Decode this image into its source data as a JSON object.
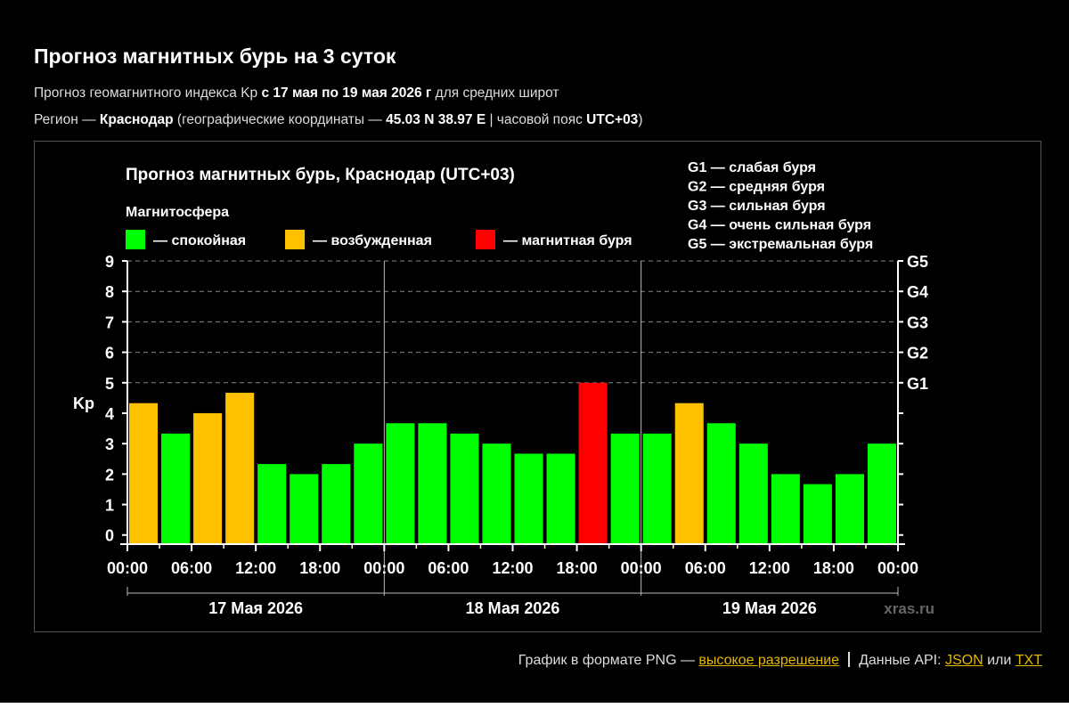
{
  "page": {
    "title": "Прогноз магнитных бурь на 3 суток",
    "line1": {
      "prefix": "Прогноз геомагнитного индекса Kp ",
      "dates": "с 17 мая по 19 мая 2026 г",
      "suffix": " для средних широт"
    },
    "line2": {
      "prefix": "Регион — ",
      "city": "Краснодар",
      "mid": " (географические координаты — ",
      "coords": "45.03 N 38.97 E",
      "mid2": " | часовой пояс ",
      "tz": "UTC+03",
      "end": ")"
    }
  },
  "chart_data": {
    "type": "bar",
    "title": "Прогноз магнитных бурь, Краснодар (UTC+03)",
    "ylabel": "Kp",
    "ylim": [
      0,
      9
    ],
    "y_ticks": [
      "0",
      "1",
      "2",
      "3",
      "4",
      "5",
      "6",
      "7",
      "8",
      "9"
    ],
    "g_levels": [
      {
        "label": "G1",
        "kp": 5
      },
      {
        "label": "G2",
        "kp": 6
      },
      {
        "label": "G3",
        "kp": 7
      },
      {
        "label": "G4",
        "kp": 8
      },
      {
        "label": "G5",
        "kp": 9
      }
    ],
    "legend_title": "Магнитосфера",
    "legend": [
      {
        "label": "— спокойная",
        "color": "#00ff00"
      },
      {
        "label": "— возбужденная",
        "color": "#ffc000"
      },
      {
        "label": "— магнитная буря",
        "color": "#ff0000"
      }
    ],
    "g_legend": [
      "G1 — слабая буря",
      "G2 — средняя буря",
      "G3 — сильная буря",
      "G4 — очень сильная буря",
      "G5 — экстремальная буря"
    ],
    "x_tick_labels": [
      "00:00",
      "06:00",
      "12:00",
      "18:00",
      "00:00",
      "06:00",
      "12:00",
      "18:00",
      "00:00",
      "06:00",
      "12:00",
      "18:00",
      "00:00"
    ],
    "days": [
      "17 Мая 2026",
      "18 Мая 2026",
      "19 Мая 2026"
    ],
    "values": [
      4.33,
      3.33,
      4.0,
      4.67,
      2.33,
      2.0,
      2.33,
      3.0,
      3.67,
      3.67,
      3.33,
      3.0,
      2.67,
      2.67,
      5.0,
      3.33,
      3.33,
      4.33,
      3.67,
      3.0,
      2.0,
      1.67,
      2.0,
      3.0
    ],
    "colors": {
      "calm": "#00ff00",
      "excited": "#ffc000",
      "storm": "#ff0000"
    },
    "watermark": "xras.ru"
  },
  "footer": {
    "png_text": "График в формате PNG — ",
    "png_link": "высокое разрешение",
    "api_text": "Данные API: ",
    "json_link": "JSON",
    "or_text": " или ",
    "txt_link": "TXT"
  }
}
